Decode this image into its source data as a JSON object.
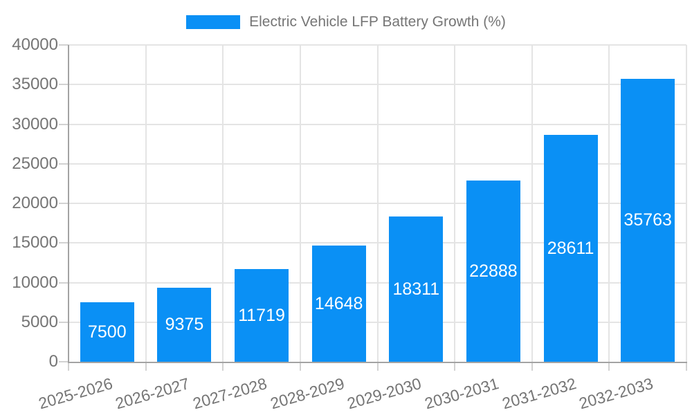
{
  "chart_data": {
    "type": "bar",
    "title": "Electric Vehicle LFP Battery Growth (%)",
    "legend_position": "top",
    "categories": [
      "2025-2026",
      "2026-2027",
      "2027-2028",
      "2028-2029",
      "2029-2030",
      "2030-2031",
      "2031-2032",
      "2032-2033"
    ],
    "values": [
      7500,
      9375,
      11719,
      14648,
      18311,
      22888,
      28611,
      35763
    ],
    "xlabel": "",
    "ylabel": "",
    "ylim": [
      0,
      40000
    ],
    "yticks": [
      0,
      5000,
      10000,
      15000,
      20000,
      25000,
      30000,
      35000,
      40000
    ],
    "grid": true,
    "value_label_position": "inside-center",
    "x_tick_rotation_deg": -16,
    "colors": {
      "bar": "#0a90f5",
      "value_label": "#ffffff",
      "tick_label": "#757575",
      "gridline": "#e4e4e4",
      "axis_line": "#a3a3a3",
      "tick_mark": "#d2d2d2",
      "background": "#ffffff"
    }
  }
}
